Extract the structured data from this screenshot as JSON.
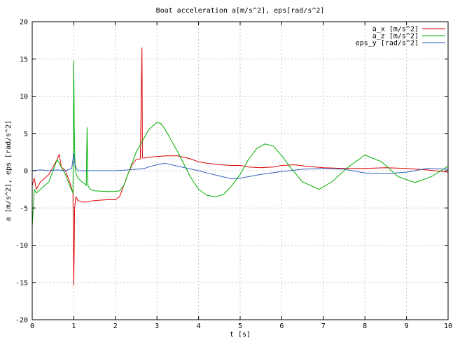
{
  "chart_data": {
    "type": "line",
    "title": "Boat acceleration a[m/s^2], eps[rad/s^2]",
    "xlabel": "t [s]",
    "ylabel": "a [m/s^2], eps [rad/s^2]",
    "xlim": [
      0,
      10
    ],
    "ylim": [
      -20,
      20
    ],
    "x_ticks": [
      "0",
      "1",
      "2",
      "3",
      "4",
      "5",
      "6",
      "7",
      "8",
      "9",
      "10"
    ],
    "y_ticks": [
      "-20",
      "-15",
      "-10",
      "-5",
      "0",
      "5",
      "10",
      "15",
      "20"
    ],
    "grid": true,
    "legend_position": "top-right",
    "series": [
      {
        "name": "a_x  [m/s^2]",
        "color": "#e00000",
        "x": [
          0,
          0.05,
          0.1,
          0.2,
          0.3,
          0.4,
          0.5,
          0.6,
          0.65,
          0.7,
          0.8,
          0.9,
          0.98,
          1.0,
          1.02,
          1.05,
          1.1,
          1.2,
          1.3,
          1.5,
          1.8,
          2.0,
          2.1,
          2.2,
          2.3,
          2.4,
          2.5,
          2.6,
          2.64,
          2.65,
          2.66,
          2.7,
          2.8,
          3.0,
          3.2,
          3.5,
          3.8,
          4.0,
          4.2,
          4.5,
          4.8,
          5.0,
          5.2,
          5.5,
          5.8,
          6.0,
          6.3,
          6.6,
          7.0,
          7.5,
          8.0,
          8.5,
          9.0,
          9.5,
          10.0
        ],
        "y": [
          -2.0,
          -1.0,
          -2.5,
          -1.5,
          -1.0,
          -0.5,
          0.5,
          1.5,
          2.2,
          0.5,
          0.0,
          -1.5,
          -3.0,
          -15.4,
          -5.0,
          -3.5,
          -4.0,
          -4.2,
          -4.2,
          -4.0,
          -3.9,
          -3.9,
          -3.5,
          -2.0,
          -0.5,
          0.8,
          1.5,
          1.6,
          16.5,
          1.8,
          1.7,
          1.7,
          1.8,
          1.9,
          2.0,
          2.0,
          1.6,
          1.2,
          1.0,
          0.8,
          0.7,
          0.7,
          0.5,
          0.4,
          0.5,
          0.7,
          0.8,
          0.6,
          0.4,
          0.3,
          0.3,
          0.4,
          0.3,
          0.1,
          -0.2
        ]
      },
      {
        "name": "a_z  [m/s^2]",
        "color": "#00b000",
        "x": [
          0,
          0.05,
          0.1,
          0.2,
          0.3,
          0.4,
          0.5,
          0.6,
          0.7,
          0.8,
          0.9,
          0.98,
          1.0,
          1.01,
          1.03,
          1.06,
          1.1,
          1.2,
          1.25,
          1.3,
          1.32,
          1.34,
          1.36,
          1.4,
          1.5,
          1.8,
          2.0,
          2.1,
          2.2,
          2.3,
          2.4,
          2.5,
          2.6,
          2.7,
          2.8,
          2.9,
          3.0,
          3.1,
          3.2,
          3.5,
          3.8,
          4.0,
          4.2,
          4.4,
          4.6,
          4.8,
          5.0,
          5.2,
          5.4,
          5.6,
          5.8,
          6.0,
          6.2,
          6.5,
          6.9,
          7.2,
          7.6,
          8.0,
          8.4,
          8.8,
          9.2,
          9.6,
          10.0
        ],
        "y": [
          -7.5,
          -2.5,
          -3.0,
          -2.5,
          -2.0,
          -1.5,
          0.0,
          1.5,
          0.5,
          -0.5,
          -2.0,
          -3.0,
          14.7,
          6.0,
          0.5,
          -0.5,
          -1.0,
          -1.5,
          -1.7,
          -2.0,
          5.8,
          -2.0,
          -2.2,
          -2.5,
          -2.7,
          -2.8,
          -2.8,
          -2.7,
          -2.0,
          -0.5,
          1.0,
          2.5,
          3.5,
          4.5,
          5.5,
          6.0,
          6.5,
          6.3,
          5.5,
          2.5,
          -0.8,
          -2.5,
          -3.3,
          -3.5,
          -3.2,
          -2.0,
          -0.5,
          1.5,
          3.0,
          3.6,
          3.3,
          2.0,
          0.5,
          -1.5,
          -2.5,
          -1.5,
          0.5,
          2.1,
          1.2,
          -0.8,
          -1.6,
          -0.8,
          0.6
        ]
      },
      {
        "name": "eps_y [rad/s^2]",
        "color": "#3060c0",
        "x": [
          0,
          0.2,
          0.4,
          0.6,
          0.8,
          0.95,
          1.0,
          1.02,
          1.06,
          1.1,
          1.3,
          1.5,
          2.0,
          2.3,
          2.5,
          2.7,
          2.8,
          3.0,
          3.2,
          3.5,
          4.0,
          4.2,
          4.5,
          4.8,
          5.0,
          5.2,
          5.5,
          6.0,
          6.5,
          7.0,
          7.5,
          8.0,
          8.5,
          9.0,
          9.5,
          10.0
        ],
        "y": [
          0.0,
          0.1,
          0.0,
          0.1,
          0.0,
          0.3,
          2.3,
          1.0,
          0.3,
          0.0,
          0.0,
          0.0,
          0.0,
          0.1,
          0.2,
          0.3,
          0.5,
          0.8,
          1.0,
          0.6,
          0.0,
          -0.3,
          -0.7,
          -1.1,
          -1.0,
          -0.8,
          -0.5,
          -0.1,
          0.2,
          0.3,
          0.2,
          -0.3,
          -0.4,
          -0.2,
          0.3,
          0.2
        ]
      }
    ]
  }
}
